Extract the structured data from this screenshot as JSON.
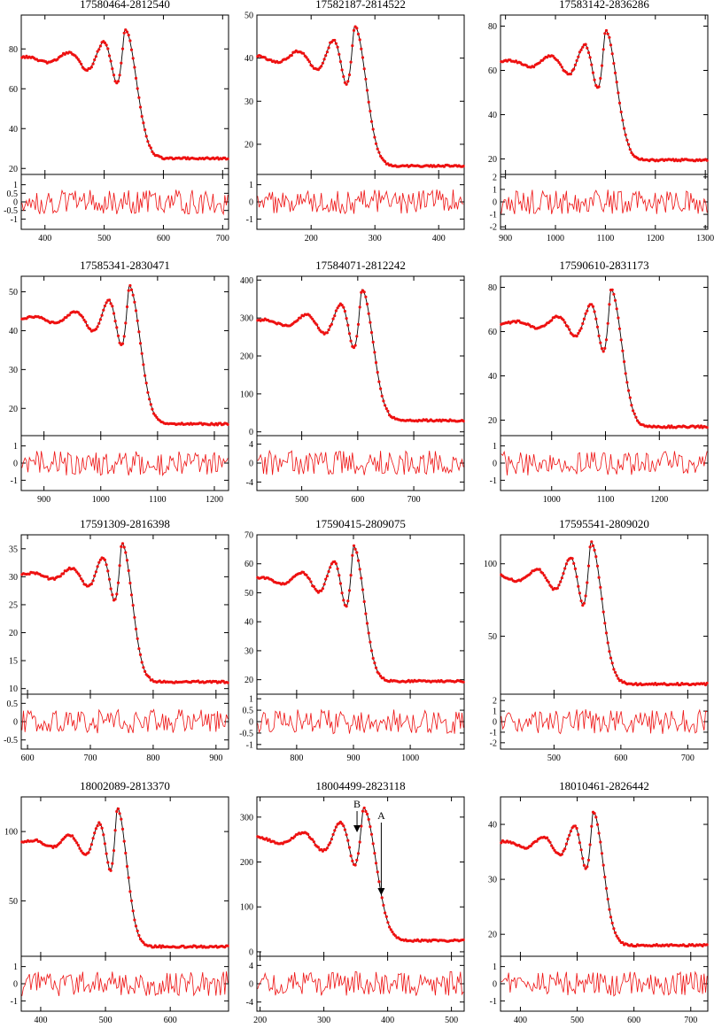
{
  "figure": {
    "colors": {
      "model": "#000000",
      "data": "#ee1111",
      "residual": "#ee1111"
    },
    "annotation_labels": {
      "A": "A",
      "B": "B"
    }
  },
  "chart_data": [
    {
      "type": "line",
      "title": "17580464-2812540",
      "xlim": [
        360,
        710
      ],
      "ylim": [
        17,
        97
      ],
      "rlim": [
        -1.6,
        1.6
      ],
      "xticks": [
        400,
        500,
        600,
        700
      ],
      "yticks": [
        20,
        40,
        60,
        80
      ],
      "rticks": [
        -1,
        -0.5,
        0,
        0.5,
        1
      ],
      "occ": {
        "t0": 535,
        "a0": 90,
        "baseline": 75,
        "bottom": 25,
        "width": 26
      }
    },
    {
      "type": "line",
      "title": "17582187-2814522",
      "xlim": [
        115,
        440
      ],
      "ylim": [
        13,
        50
      ],
      "rlim": [
        -1.6,
        1.6
      ],
      "xticks": [
        200,
        300,
        400
      ],
      "yticks": [
        20,
        30,
        40,
        50
      ],
      "rticks": [
        -1,
        0,
        1
      ],
      "occ": {
        "t0": 268,
        "a0": 47.5,
        "baseline": 40,
        "bottom": 15,
        "width": 24
      }
    },
    {
      "type": "line",
      "title": "17583142-2836286",
      "xlim": [
        890,
        1305
      ],
      "ylim": [
        13,
        85
      ],
      "rlim": [
        -2.2,
        2.2
      ],
      "xticks": [
        900,
        1000,
        1100,
        1200,
        1300
      ],
      "yticks": [
        20,
        40,
        60,
        80
      ],
      "rticks": [
        -2,
        -1,
        0,
        1,
        2
      ],
      "occ": {
        "t0": 1100,
        "a0": 78,
        "baseline": 63.5,
        "bottom": 19.5,
        "width": 30
      }
    },
    {
      "type": "line",
      "title": "17585341-2830471",
      "xlim": [
        860,
        1225
      ],
      "ylim": [
        13,
        54
      ],
      "rlim": [
        -1.6,
        1.6
      ],
      "xticks": [
        900,
        1000,
        1100,
        1200
      ],
      "yticks": [
        20,
        30,
        40,
        50
      ],
      "rticks": [
        -1,
        0,
        1
      ],
      "occ": {
        "t0": 1050,
        "a0": 51.5,
        "baseline": 43,
        "bottom": 16,
        "width": 26
      }
    },
    {
      "type": "line",
      "title": "17584071-2812242",
      "xlim": [
        420,
        790
      ],
      "ylim": [
        -10,
        410
      ],
      "rlim": [
        -5.8,
        5.8
      ],
      "xticks": [
        500,
        600,
        700
      ],
      "yticks": [
        0,
        100,
        200,
        300,
        400
      ],
      "rticks": [
        -4,
        0,
        4
      ],
      "occ": {
        "t0": 607,
        "a0": 375,
        "baseline": 290,
        "bottom": 30,
        "width": 27
      }
    },
    {
      "type": "line",
      "title": "17590610-2831173",
      "xlim": [
        905,
        1290
      ],
      "ylim": [
        13,
        85
      ],
      "rlim": [
        -1.6,
        1.6
      ],
      "xticks": [
        1000,
        1100,
        1200
      ],
      "yticks": [
        20,
        40,
        60,
        80
      ],
      "rticks": [
        -1,
        0,
        1
      ],
      "occ": {
        "t0": 1110,
        "a0": 79,
        "baseline": 63.5,
        "bottom": 17,
        "width": 27
      }
    },
    {
      "type": "line",
      "title": "17591309-2816398",
      "xlim": [
        590,
        920
      ],
      "ylim": [
        9,
        37.5
      ],
      "rlim": [
        -0.75,
        0.75
      ],
      "xticks": [
        600,
        700,
        800,
        900
      ],
      "yticks": [
        10,
        15,
        20,
        25,
        30,
        35
      ],
      "rticks": [
        -0.5,
        0,
        0.5
      ],
      "occ": {
        "t0": 750,
        "a0": 36,
        "baseline": 30.3,
        "bottom": 11.2,
        "width": 22
      }
    },
    {
      "type": "line",
      "title": "17590415-2809075",
      "xlim": [
        730,
        1095
      ],
      "ylim": [
        15,
        70
      ],
      "rlim": [
        -1.2,
        1.2
      ],
      "xticks": [
        800,
        900,
        1000
      ],
      "yticks": [
        20,
        30,
        40,
        50,
        60,
        70
      ],
      "rticks": [
        -1,
        -0.5,
        0,
        0.5,
        1
      ],
      "occ": {
        "t0": 900,
        "a0": 66,
        "baseline": 54.5,
        "bottom": 19.5,
        "width": 25
      }
    },
    {
      "type": "line",
      "title": "17595541-2809020",
      "xlim": [
        420,
        730
      ],
      "ylim": [
        10,
        120
      ],
      "rlim": [
        -2.6,
        2.6
      ],
      "xticks": [
        500,
        600,
        700
      ],
      "yticks": [
        50,
        100
      ],
      "rticks": [
        -2,
        -1,
        0,
        1,
        2
      ],
      "occ": {
        "t0": 555,
        "a0": 115,
        "baseline": 91,
        "bottom": 17,
        "width": 22
      }
    },
    {
      "type": "line",
      "title": "18002089-2813370",
      "xlim": [
        370,
        690
      ],
      "ylim": [
        10,
        125
      ],
      "rlim": [
        -1.6,
        1.6
      ],
      "xticks": [
        400,
        500,
        600
      ],
      "yticks": [
        50,
        100
      ],
      "rticks": [
        -1,
        0,
        1
      ],
      "occ": {
        "t0": 518,
        "a0": 117,
        "baseline": 92,
        "bottom": 17,
        "width": 20
      }
    },
    {
      "type": "line",
      "title": "18004499-2823118",
      "xlim": [
        195,
        520
      ],
      "ylim": [
        -10,
        345
      ],
      "rlim": [
        -6,
        6
      ],
      "xticks": [
        200,
        300,
        400,
        500
      ],
      "yticks": [
        0,
        100,
        200,
        300
      ],
      "rticks": [
        -4,
        0,
        4
      ],
      "occ": {
        "t0": 362,
        "a0": 320,
        "baseline": 250,
        "bottom": 25,
        "width": 26
      },
      "annotations": [
        {
          "label": "A",
          "x": 390,
          "y": 130
        },
        {
          "label": "B",
          "x": 352,
          "y": 270
        }
      ]
    },
    {
      "type": "line",
      "title": "18010461-2826442",
      "xlim": [
        365,
        730
      ],
      "ylim": [
        16,
        45
      ],
      "rlim": [
        -1.6,
        1.6
      ],
      "xticks": [
        400,
        500,
        600,
        700
      ],
      "yticks": [
        20,
        30,
        40
      ],
      "rticks": [
        -1,
        0,
        1
      ],
      "occ": {
        "t0": 528,
        "a0": 42.3,
        "baseline": 36.5,
        "bottom": 18,
        "width": 24
      }
    }
  ]
}
